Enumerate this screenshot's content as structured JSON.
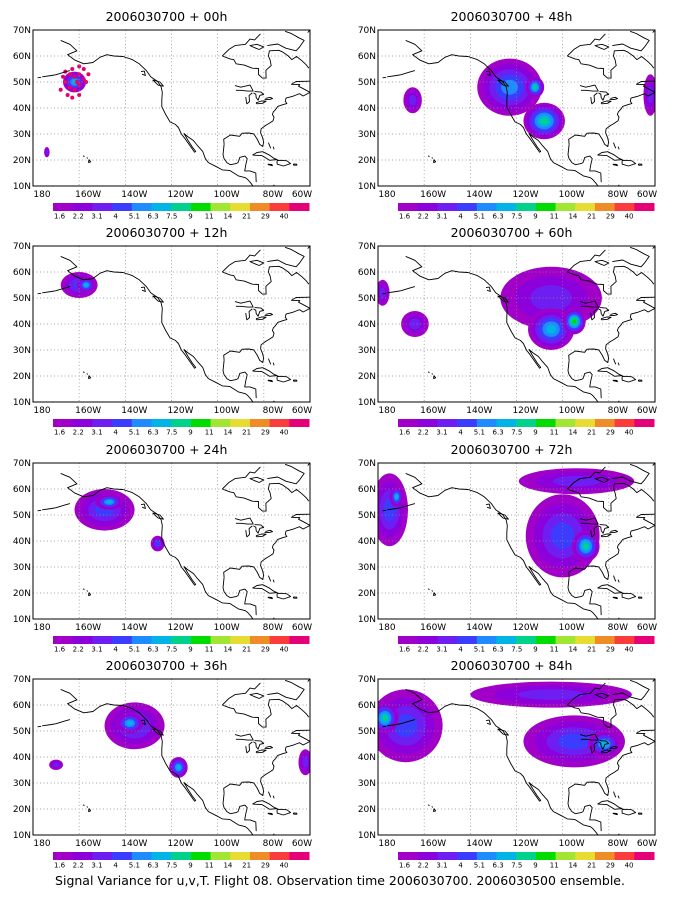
{
  "caption": "Signal Variance for u,v,T. Flight 08. Observation time 2006030700. 2006030500 ensemble.",
  "x_ticks": [
    "180",
    "160W",
    "140W",
    "120W",
    "100W",
    "80W",
    "60W"
  ],
  "y_ticks": [
    "70N",
    "60N",
    "50N",
    "40N",
    "30N",
    "20N",
    "10N"
  ],
  "colorbar_labels": [
    "1.6",
    "2.2",
    "3.1",
    "4",
    "5.1",
    "6.3",
    "7.5",
    "9",
    "11",
    "14",
    "21",
    "29",
    "40"
  ],
  "colorbar_colors": [
    "#a000c8",
    "#8c00dc",
    "#6e1ef0",
    "#3c3cff",
    "#1e8cff",
    "#00b4e6",
    "#00d28c",
    "#00dc00",
    "#a0e632",
    "#e6dc32",
    "#f08c28",
    "#fa3c3c",
    "#e60078"
  ],
  "chart_data": [
    {
      "type": "heatmap",
      "title": "2006030700 + 00h",
      "lead_hours": 0,
      "xlim": [
        -180,
        -60
      ],
      "ylim": [
        10,
        70
      ],
      "grid": true,
      "blobs": [
        {
          "lon": -162,
          "lat": 50,
          "rlon": 5,
          "rlat": 4,
          "level": 5
        },
        {
          "lon": -174,
          "lat": 23,
          "rlon": 1.2,
          "rlat": 2,
          "level": 2
        }
      ]
    },
    {
      "type": "heatmap",
      "title": "2006030700 + 48h",
      "lead_hours": 48,
      "xlim": [
        -180,
        -60
      ],
      "ylim": [
        10,
        70
      ],
      "grid": true,
      "blobs": [
        {
          "lon": -123,
          "lat": 48,
          "rlon": 14,
          "rlat": 11,
          "level": 4
        },
        {
          "lon": -108,
          "lat": 35,
          "rlon": 9,
          "rlat": 7,
          "level": 6
        },
        {
          "lon": -112,
          "lat": 48,
          "rlon": 4,
          "rlat": 4,
          "level": 6
        },
        {
          "lon": -165,
          "lat": 43,
          "rlon": 4,
          "rlat": 5,
          "level": 2
        },
        {
          "lon": -62,
          "lat": 45,
          "rlon": 3,
          "rlat": 8,
          "level": 2
        }
      ]
    },
    {
      "type": "heatmap",
      "title": "2006030700 + 12h",
      "lead_hours": 12,
      "xlim": [
        -180,
        -60
      ],
      "ylim": [
        10,
        70
      ],
      "grid": true,
      "blobs": [
        {
          "lon": -160,
          "lat": 55,
          "rlon": 8,
          "rlat": 5,
          "level": 3
        },
        {
          "lon": -157,
          "lat": 55,
          "rlon": 4,
          "rlat": 3,
          "level": 5
        }
      ]
    },
    {
      "type": "heatmap",
      "title": "2006030700 + 60h",
      "lead_hours": 60,
      "xlim": [
        -180,
        -60
      ],
      "ylim": [
        10,
        70
      ],
      "grid": true,
      "blobs": [
        {
          "lon": -105,
          "lat": 50,
          "rlon": 22,
          "rlat": 12,
          "level": 2
        },
        {
          "lon": -105,
          "lat": 38,
          "rlon": 10,
          "rlat": 8,
          "level": 5
        },
        {
          "lon": -95,
          "lat": 41,
          "rlon": 5,
          "rlat": 5,
          "level": 7
        },
        {
          "lon": -164,
          "lat": 40,
          "rlon": 6,
          "rlat": 5,
          "level": 2
        },
        {
          "lon": -178,
          "lat": 52,
          "rlon": 3,
          "rlat": 5,
          "level": 2
        }
      ]
    },
    {
      "type": "heatmap",
      "title": "2006030700 + 24h",
      "lead_hours": 24,
      "xlim": [
        -180,
        -60
      ],
      "ylim": [
        10,
        70
      ],
      "grid": true,
      "blobs": [
        {
          "lon": -149,
          "lat": 52,
          "rlon": 13,
          "rlat": 8,
          "level": 3
        },
        {
          "lon": -147,
          "lat": 55,
          "rlon": 6,
          "rlat": 3,
          "level": 5
        },
        {
          "lon": -126,
          "lat": 39,
          "rlon": 3,
          "rlat": 3,
          "level": 3
        }
      ]
    },
    {
      "type": "heatmap",
      "title": "2006030700 + 72h",
      "lead_hours": 72,
      "xlim": [
        -180,
        -60
      ],
      "ylim": [
        10,
        70
      ],
      "grid": true,
      "blobs": [
        {
          "lon": -175,
          "lat": 52,
          "rlon": 8,
          "rlat": 14,
          "level": 3
        },
        {
          "lon": -172,
          "lat": 57,
          "rlon": 3,
          "rlat": 4,
          "level": 5
        },
        {
          "lon": -100,
          "lat": 42,
          "rlon": 16,
          "rlat": 16,
          "level": 3
        },
        {
          "lon": -90,
          "lat": 38,
          "rlon": 6,
          "rlat": 6,
          "level": 6
        },
        {
          "lon": -94,
          "lat": 63,
          "rlon": 25,
          "rlat": 5,
          "level": 2
        }
      ]
    },
    {
      "type": "heatmap",
      "title": "2006030700 + 36h",
      "lead_hours": 36,
      "xlim": [
        -180,
        -60
      ],
      "ylim": [
        10,
        70
      ],
      "grid": true,
      "blobs": [
        {
          "lon": -136,
          "lat": 52,
          "rlon": 13,
          "rlat": 9,
          "level": 3
        },
        {
          "lon": -138,
          "lat": 53,
          "rlon": 6,
          "rlat": 4,
          "level": 5
        },
        {
          "lon": -117,
          "lat": 36,
          "rlon": 4,
          "rlat": 4,
          "level": 5
        },
        {
          "lon": -170,
          "lat": 37,
          "rlon": 3,
          "rlat": 2,
          "level": 2
        },
        {
          "lon": -62,
          "lat": 38,
          "rlon": 3,
          "rlat": 5,
          "level": 2
        }
      ]
    },
    {
      "type": "heatmap",
      "title": "2006030700 + 84h",
      "lead_hours": 84,
      "xlim": [
        -180,
        -60
      ],
      "ylim": [
        10,
        70
      ],
      "grid": true,
      "blobs": [
        {
          "lon": -168,
          "lat": 52,
          "rlon": 16,
          "rlat": 14,
          "level": 3
        },
        {
          "lon": -177,
          "lat": 55,
          "rlon": 6,
          "rlat": 6,
          "level": 6
        },
        {
          "lon": -95,
          "lat": 46,
          "rlon": 22,
          "rlat": 10,
          "level": 3
        },
        {
          "lon": -82,
          "lat": 45,
          "rlon": 7,
          "rlat": 5,
          "level": 5
        },
        {
          "lon": -105,
          "lat": 64,
          "rlon": 35,
          "rlat": 5,
          "level": 2
        }
      ]
    }
  ]
}
